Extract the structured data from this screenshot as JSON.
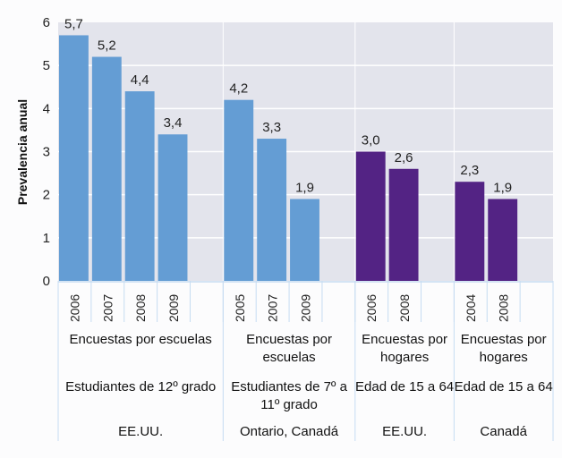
{
  "chart_data": {
    "type": "bar",
    "title": "",
    "ylabel": "Prevalencia anual",
    "xlabel": "",
    "ylim": [
      0,
      6
    ],
    "yticks": [
      "0",
      "1",
      "2",
      "3",
      "4",
      "5",
      "6"
    ],
    "grid": true,
    "colors": {
      "school": "#649dd4",
      "household": "#532384",
      "plot_bg": "#e3e4ec",
      "grid": "#ffffff",
      "separator": "#c6dcf2"
    },
    "groups": [
      {
        "survey": "Encuestas por escuelas",
        "population": "Estudiantes de 12º grado",
        "country": "EE.UU.",
        "kind": "school",
        "categories": [
          "2006",
          "2007",
          "2008",
          "2009"
        ],
        "values": [
          5.7,
          5.2,
          4.4,
          3.4
        ],
        "labels": [
          "5,7",
          "5,2",
          "4,4",
          "3,4"
        ]
      },
      {
        "survey": "Encuestas por escuelas",
        "population": "Estudiantes de 7º a 11º grado",
        "country": "Ontario, Canadá",
        "kind": "school",
        "categories": [
          "2005",
          "2007",
          "2009"
        ],
        "values": [
          4.2,
          3.3,
          1.9
        ],
        "labels": [
          "4,2",
          "3,3",
          "1,9"
        ]
      },
      {
        "survey": "Encuestas por hogares",
        "population": "Edad de 15 a 64",
        "country": "EE.UU.",
        "kind": "household",
        "categories": [
          "2006",
          "2008"
        ],
        "values": [
          3.0,
          2.6
        ],
        "labels": [
          "3,0",
          "2,6"
        ]
      },
      {
        "survey": "Encuestas por hogares",
        "population": "Edad de 15 a 64",
        "country": "Canadá",
        "kind": "household",
        "categories": [
          "2004",
          "2008"
        ],
        "values": [
          2.3,
          1.9
        ],
        "labels": [
          "2,3",
          "1,9"
        ]
      }
    ]
  }
}
